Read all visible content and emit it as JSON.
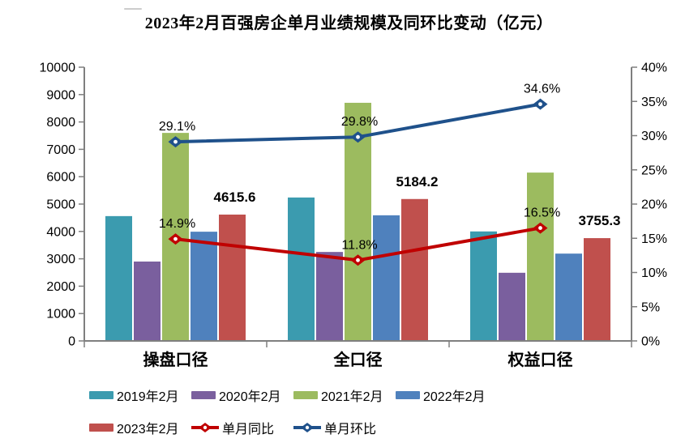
{
  "chart_data": {
    "type": "bar+line",
    "title": "2023年2月百强房企单月业绩规模及同环比变动（亿元）",
    "categories": [
      "操盘口径",
      "全口径",
      "权益口径"
    ],
    "bar_series": [
      {
        "name": "2019年2月",
        "color": "#3B9BAF",
        "values": [
          4560,
          5240,
          4000
        ]
      },
      {
        "name": "2020年2月",
        "color": "#7A5F9E",
        "values": [
          2900,
          3250,
          2490
        ]
      },
      {
        "name": "2021年2月",
        "color": "#9CBB5F",
        "values": [
          7600,
          8700,
          6150
        ]
      },
      {
        "name": "2022年2月",
        "color": "#4F81BD",
        "values": [
          3990,
          4590,
          3190
        ]
      },
      {
        "name": "2023年2月",
        "color": "#C0504D",
        "values": [
          4615.6,
          5184.2,
          3755.3
        ],
        "labels": [
          "4615.6",
          "5184.2",
          "3755.3"
        ]
      }
    ],
    "line_series": [
      {
        "name": "单月同比",
        "color": "#C00000",
        "axis": "right",
        "values_pct": [
          14.9,
          11.8,
          16.5
        ],
        "labels": [
          "14.9%",
          "11.8%",
          "16.5%"
        ]
      },
      {
        "name": "单月环比",
        "color": "#1F518B",
        "axis": "right",
        "values_pct": [
          29.1,
          29.8,
          34.6
        ],
        "labels": [
          "29.1%",
          "29.8%",
          "34.6%"
        ]
      }
    ],
    "left_axis": {
      "min": 0,
      "max": 10000,
      "step": 1000,
      "ticks": [
        "0",
        "1000",
        "2000",
        "3000",
        "4000",
        "5000",
        "6000",
        "7000",
        "8000",
        "9000",
        "10000"
      ]
    },
    "right_axis": {
      "min": 0,
      "max": 40,
      "step": 5,
      "ticks": [
        "0%",
        "5%",
        "10%",
        "15%",
        "20%",
        "25%",
        "30%",
        "35%",
        "40%"
      ]
    },
    "legend": {
      "position": "bottom",
      "rows": [
        [
          "2019年2月",
          "2020年2月",
          "2021年2月",
          "2022年2月"
        ],
        [
          "2023年2月",
          "单月同比",
          "单月环比"
        ]
      ]
    },
    "grid": "off",
    "axis_color": "#7F7F7F"
  }
}
